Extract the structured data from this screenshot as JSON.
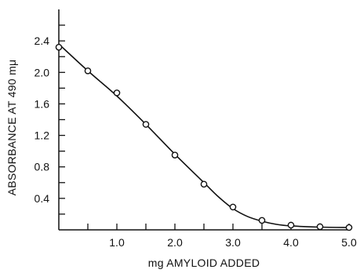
{
  "chart_data": {
    "type": "line",
    "title": "",
    "xlabel": "mg AMYLOID ADDED",
    "ylabel": "ABSORBANCE AT 490 mμ",
    "xlim": [
      0,
      5.0
    ],
    "ylim": [
      0,
      2.8
    ],
    "x_ticks": [
      0.5,
      1.0,
      1.5,
      2.0,
      2.5,
      3.0,
      3.5,
      4.0,
      4.5,
      5.0
    ],
    "x_tick_labels": [
      "1.0",
      "2.0",
      "3.0",
      "4.0",
      "5.0"
    ],
    "x_tick_label_values": [
      1.0,
      2.0,
      3.0,
      4.0,
      5.0
    ],
    "y_ticks": [
      0.2,
      0.4,
      0.6,
      0.8,
      1.0,
      1.2,
      1.4,
      1.6,
      1.8,
      2.0,
      2.2,
      2.4,
      2.6
    ],
    "y_tick_labels": [
      "0.4",
      "0.8",
      "1.2",
      "1.6",
      "2.0",
      "2.4"
    ],
    "y_tick_label_values": [
      0.4,
      0.8,
      1.2,
      1.6,
      2.0,
      2.4
    ],
    "grid": false,
    "series": [
      {
        "marker": "open-circle",
        "x": [
          0.0,
          0.5,
          1.0,
          1.5,
          2.0,
          2.5,
          3.0,
          3.5,
          4.0,
          4.5,
          5.0
        ],
        "y": [
          2.32,
          2.02,
          1.74,
          1.34,
          0.95,
          0.58,
          0.29,
          0.12,
          0.06,
          0.04,
          0.03
        ]
      }
    ],
    "fit_curve": {
      "x": [
        0.0,
        0.5,
        1.0,
        1.5,
        2.0,
        2.5,
        2.75,
        3.0,
        3.25,
        3.5,
        3.75,
        4.0,
        4.5,
        5.0
      ],
      "y": [
        2.36,
        2.02,
        1.7,
        1.34,
        0.96,
        0.6,
        0.42,
        0.27,
        0.17,
        0.11,
        0.07,
        0.05,
        0.035,
        0.03
      ]
    }
  }
}
